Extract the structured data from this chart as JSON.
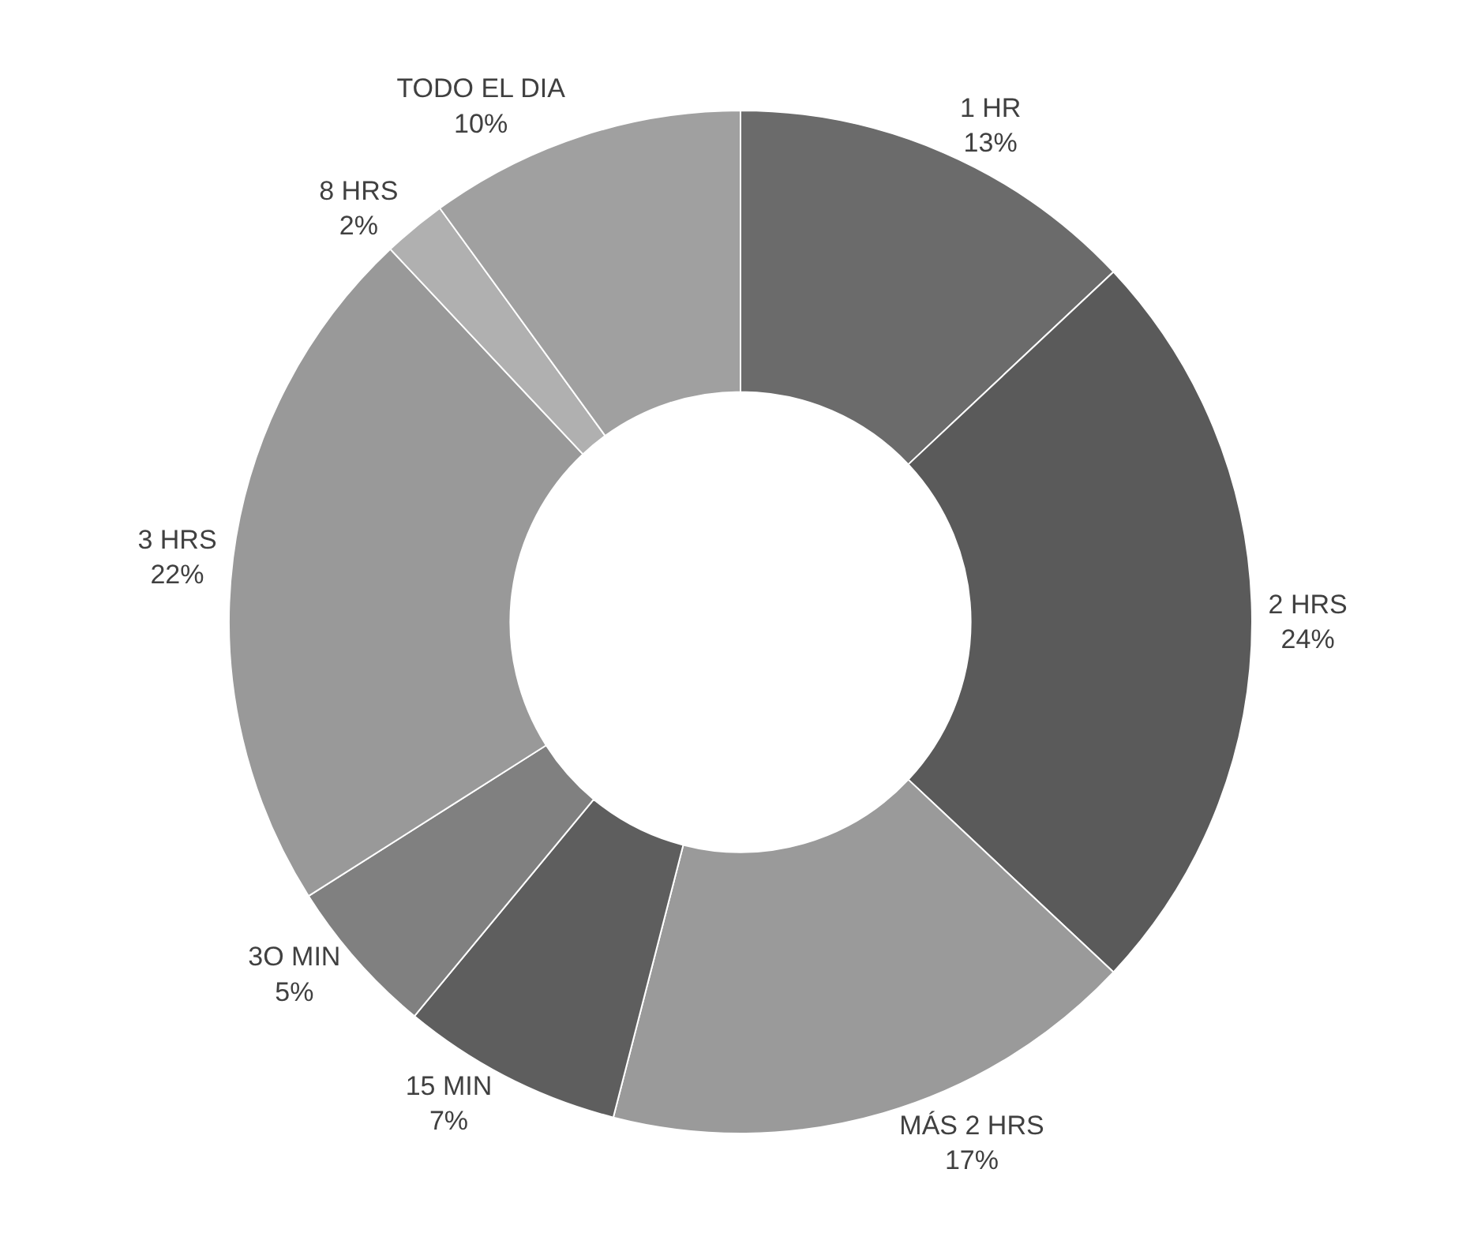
{
  "chart_data": {
    "type": "donut",
    "categories": [
      "1 HR",
      "2 HRS",
      "MÁS 2 HRS",
      "15 MIN",
      "3O MIN",
      "3 HRS",
      "8 HRS",
      "TODO EL DIA"
    ],
    "values": [
      13,
      24,
      17,
      7,
      5,
      22,
      2,
      10
    ],
    "value_labels": [
      "13%",
      "24%",
      "17%",
      "7%",
      "5%",
      "22%",
      "2%",
      "10%"
    ],
    "colors": [
      "#6b6b6b",
      "#5a5a5a",
      "#9a9a9a",
      "#5e5e5e",
      "#808080",
      "#999999",
      "#b0b0b0",
      "#a0a0a0"
    ],
    "legend": false
  }
}
